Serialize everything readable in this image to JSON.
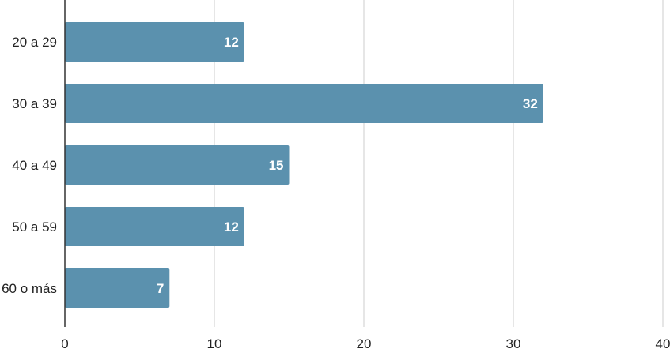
{
  "chart_data": {
    "type": "bar",
    "orientation": "horizontal",
    "categories": [
      "20 a 29",
      "30 a 39",
      "40 a 49",
      "50 a 59",
      "60 o más"
    ],
    "values": [
      12,
      32,
      15,
      12,
      7
    ],
    "data_labels": [
      "12",
      "32",
      "15",
      "12",
      "7"
    ],
    "x_ticks": [
      "0",
      "10",
      "20",
      "30",
      "40"
    ],
    "xlim": [
      0,
      40
    ],
    "grid": true,
    "legend": "none",
    "colors": {
      "bar": "#5b91ae",
      "grid": "#cccccc",
      "axis": "#333333",
      "value_label": "#ffffff"
    }
  }
}
